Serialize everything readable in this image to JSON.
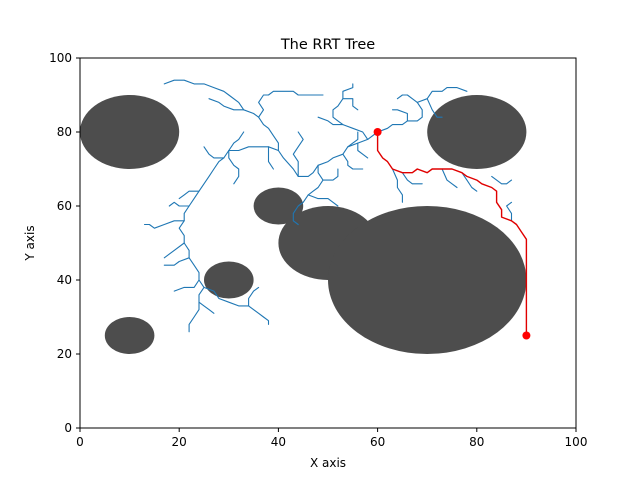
{
  "chart_data": {
    "type": "scatter",
    "title": "The RRT Tree",
    "xlabel": "X axis",
    "ylabel": "Y axis",
    "xlim": [
      0,
      100
    ],
    "ylim": [
      0,
      100
    ],
    "xticks": [
      0,
      20,
      40,
      60,
      80,
      100
    ],
    "yticks": [
      0,
      20,
      40,
      60,
      80,
      100
    ],
    "grid": false,
    "colors": {
      "obstacle": "#4d4d4d",
      "tree": "#1f77b4",
      "path": "#e00000",
      "markers": "#ff0000"
    },
    "obstacles": [
      {
        "cx": 10,
        "cy": 80,
        "r": 10
      },
      {
        "cx": 80,
        "cy": 80,
        "r": 10
      },
      {
        "cx": 40,
        "cy": 60,
        "r": 5
      },
      {
        "cx": 50,
        "cy": 50,
        "r": 10
      },
      {
        "cx": 70,
        "cy": 40,
        "r": 20
      },
      {
        "cx": 30,
        "cy": 40,
        "r": 5
      },
      {
        "cx": 10,
        "cy": 25,
        "r": 5
      }
    ],
    "start": {
      "x": 90,
      "y": 25
    },
    "goal": {
      "x": 60,
      "y": 80
    },
    "path": [
      [
        90,
        25
      ],
      [
        90,
        51
      ],
      [
        89,
        53
      ],
      [
        88,
        55
      ],
      [
        87,
        56
      ],
      [
        85,
        57
      ],
      [
        85,
        59
      ],
      [
        84,
        61
      ],
      [
        84,
        64
      ],
      [
        83,
        65
      ],
      [
        81,
        66
      ],
      [
        80,
        67
      ],
      [
        78,
        68
      ],
      [
        77,
        69
      ],
      [
        75,
        70
      ],
      [
        73,
        70
      ],
      [
        71,
        70
      ],
      [
        70,
        69
      ],
      [
        68,
        70
      ],
      [
        67,
        69
      ],
      [
        65,
        69
      ],
      [
        63,
        70
      ],
      [
        62,
        72
      ],
      [
        61,
        73
      ],
      [
        60,
        75
      ],
      [
        60,
        77
      ],
      [
        60,
        79
      ],
      [
        60,
        80
      ]
    ],
    "tree_branches": [
      [
        [
          60,
          80
        ],
        [
          58,
          78
        ],
        [
          56,
          77
        ],
        [
          54,
          76
        ],
        [
          53,
          74
        ],
        [
          51,
          73
        ],
        [
          50,
          72
        ],
        [
          48,
          71
        ],
        [
          47,
          69
        ],
        [
          46,
          68
        ],
        [
          44,
          68
        ],
        [
          43,
          70
        ],
        [
          41,
          73
        ],
        [
          40,
          75
        ],
        [
          38,
          76
        ],
        [
          36,
          76
        ],
        [
          34,
          76
        ],
        [
          32,
          75
        ],
        [
          30,
          75
        ],
        [
          29,
          73
        ],
        [
          28,
          72
        ],
        [
          27,
          70
        ],
        [
          26,
          68
        ],
        [
          25,
          66
        ],
        [
          24,
          64
        ],
        [
          23,
          62
        ],
        [
          22,
          60
        ],
        [
          21,
          58
        ],
        [
          21,
          56
        ],
        [
          20,
          54
        ],
        [
          21,
          52
        ],
        [
          21,
          50
        ],
        [
          22,
          48
        ],
        [
          22,
          46
        ],
        [
          23,
          44
        ],
        [
          24,
          42
        ],
        [
          24,
          40
        ],
        [
          25,
          38
        ],
        [
          24,
          36
        ],
        [
          24,
          34
        ],
        [
          24,
          32
        ],
        [
          23,
          30
        ],
        [
          22,
          28
        ],
        [
          22,
          26
        ]
      ],
      [
        [
          40,
          75
        ],
        [
          40,
          77
        ],
        [
          39,
          79
        ],
        [
          38,
          81
        ],
        [
          37,
          82
        ],
        [
          36,
          84
        ],
        [
          35,
          85
        ],
        [
          33,
          86
        ],
        [
          32,
          88
        ],
        [
          30,
          90
        ],
        [
          29,
          91
        ],
        [
          27,
          92
        ],
        [
          25,
          93
        ],
        [
          23,
          93
        ],
        [
          21,
          94
        ],
        [
          19,
          94
        ],
        [
          17,
          93
        ]
      ],
      [
        [
          36,
          84
        ],
        [
          37,
          86
        ],
        [
          36,
          88
        ],
        [
          37,
          90
        ],
        [
          38,
          90
        ],
        [
          39,
          91
        ],
        [
          41,
          91
        ],
        [
          43,
          91
        ],
        [
          44,
          90
        ],
        [
          45,
          90
        ],
        [
          47,
          90
        ],
        [
          49,
          90
        ]
      ],
      [
        [
          33,
          86
        ],
        [
          31,
          86
        ],
        [
          29,
          87
        ],
        [
          28,
          88
        ],
        [
          26,
          89
        ]
      ],
      [
        [
          30,
          75
        ],
        [
          31,
          77
        ],
        [
          32,
          78
        ],
        [
          33,
          80
        ]
      ],
      [
        [
          38,
          76
        ],
        [
          38,
          74
        ],
        [
          38,
          72
        ],
        [
          39,
          70
        ]
      ],
      [
        [
          44,
          68
        ],
        [
          44,
          72
        ],
        [
          43,
          74
        ],
        [
          44,
          76
        ],
        [
          45,
          78
        ],
        [
          44,
          80
        ]
      ],
      [
        [
          24,
          64
        ],
        [
          22,
          64
        ],
        [
          21,
          63
        ],
        [
          20,
          62
        ]
      ],
      [
        [
          22,
          60
        ],
        [
          20,
          60
        ],
        [
          19,
          61
        ],
        [
          18,
          60
        ]
      ],
      [
        [
          21,
          56
        ],
        [
          19,
          56
        ],
        [
          17,
          55
        ],
        [
          15,
          54
        ],
        [
          14,
          55
        ],
        [
          13,
          55
        ]
      ],
      [
        [
          21,
          50
        ],
        [
          19,
          48
        ],
        [
          18,
          47
        ],
        [
          17,
          46
        ]
      ],
      [
        [
          22,
          46
        ],
        [
          20,
          45
        ],
        [
          19,
          44
        ],
        [
          17,
          44
        ]
      ],
      [
        [
          24,
          40
        ],
        [
          23,
          38
        ],
        [
          21,
          38
        ],
        [
          19,
          37
        ]
      ],
      [
        [
          25,
          38
        ],
        [
          27,
          37
        ],
        [
          28,
          35
        ],
        [
          30,
          34
        ],
        [
          32,
          33
        ],
        [
          34,
          33
        ],
        [
          36,
          31
        ],
        [
          37,
          30
        ],
        [
          38,
          29
        ],
        [
          38,
          28
        ]
      ],
      [
        [
          24,
          34
        ],
        [
          25,
          33
        ],
        [
          26,
          32
        ],
        [
          27,
          31
        ]
      ],
      [
        [
          34,
          33
        ],
        [
          34,
          35
        ],
        [
          35,
          37
        ],
        [
          36,
          38
        ]
      ],
      [
        [
          30,
          75
        ],
        [
          30,
          73
        ],
        [
          31,
          71
        ],
        [
          32,
          70
        ],
        [
          32,
          68
        ],
        [
          31,
          66
        ]
      ],
      [
        [
          29,
          73
        ],
        [
          27,
          73
        ],
        [
          26,
          74
        ],
        [
          25,
          76
        ]
      ],
      [
        [
          48,
          71
        ],
        [
          48,
          69
        ],
        [
          49,
          67
        ],
        [
          48,
          65
        ],
        [
          47,
          64
        ],
        [
          46,
          63
        ],
        [
          45,
          61
        ],
        [
          44,
          60
        ],
        [
          43,
          58
        ],
        [
          43,
          56
        ],
        [
          44,
          55
        ]
      ],
      [
        [
          49,
          67
        ],
        [
          51,
          67
        ],
        [
          52,
          68
        ],
        [
          52,
          70
        ]
      ],
      [
        [
          46,
          63
        ],
        [
          48,
          62
        ],
        [
          50,
          62
        ],
        [
          51,
          61
        ],
        [
          52,
          60
        ]
      ],
      [
        [
          53,
          74
        ],
        [
          54,
          72
        ],
        [
          54,
          71
        ],
        [
          55,
          70
        ],
        [
          57,
          70
        ]
      ],
      [
        [
          54,
          76
        ],
        [
          55,
          77
        ],
        [
          56,
          78
        ],
        [
          56,
          80
        ]
      ],
      [
        [
          56,
          77
        ],
        [
          56,
          75
        ],
        [
          57,
          74
        ],
        [
          58,
          73
        ]
      ],
      [
        [
          58,
          78
        ],
        [
          57,
          80
        ],
        [
          55,
          81
        ],
        [
          53,
          82
        ],
        [
          52,
          83
        ],
        [
          51,
          84
        ],
        [
          51,
          86
        ],
        [
          52,
          87
        ],
        [
          53,
          89
        ],
        [
          53,
          91
        ],
        [
          55,
          92
        ],
        [
          55,
          93
        ]
      ],
      [
        [
          53,
          82
        ],
        [
          51,
          82
        ],
        [
          50,
          83
        ],
        [
          48,
          84
        ]
      ],
      [
        [
          53,
          89
        ],
        [
          55,
          89
        ],
        [
          55,
          87
        ],
        [
          56,
          86
        ]
      ],
      [
        [
          60,
          80
        ],
        [
          62,
          81
        ],
        [
          63,
          82
        ],
        [
          65,
          82
        ],
        [
          66,
          83
        ],
        [
          68,
          83
        ],
        [
          69,
          84
        ],
        [
          69,
          86
        ],
        [
          68,
          88
        ],
        [
          67,
          89
        ],
        [
          66,
          90
        ],
        [
          65,
          90
        ],
        [
          64,
          89
        ]
      ],
      [
        [
          66,
          83
        ],
        [
          66,
          85
        ],
        [
          64,
          86
        ],
        [
          63,
          86
        ]
      ],
      [
        [
          68,
          88
        ],
        [
          70,
          89
        ],
        [
          71,
          91
        ],
        [
          73,
          91
        ],
        [
          74,
          92
        ],
        [
          76,
          92
        ],
        [
          78,
          91
        ]
      ],
      [
        [
          70,
          89
        ],
        [
          71,
          86
        ],
        [
          72,
          84
        ],
        [
          73,
          84
        ]
      ],
      [
        [
          83,
          68
        ],
        [
          84,
          67
        ],
        [
          85,
          66
        ],
        [
          86,
          66
        ],
        [
          87,
          67
        ]
      ],
      [
        [
          87,
          56
        ],
        [
          87,
          58
        ],
        [
          86,
          60
        ],
        [
          87,
          61
        ]
      ],
      [
        [
          63,
          70
        ],
        [
          64,
          67
        ],
        [
          64,
          65
        ],
        [
          65,
          63
        ],
        [
          65,
          61
        ]
      ],
      [
        [
          65,
          69
        ],
        [
          66,
          67
        ],
        [
          67,
          66
        ],
        [
          69,
          66
        ]
      ],
      [
        [
          73,
          70
        ],
        [
          74,
          67
        ],
        [
          75,
          66
        ],
        [
          76,
          65
        ]
      ],
      [
        [
          77,
          69
        ],
        [
          78,
          67
        ],
        [
          79,
          65
        ],
        [
          80,
          64
        ]
      ]
    ]
  }
}
